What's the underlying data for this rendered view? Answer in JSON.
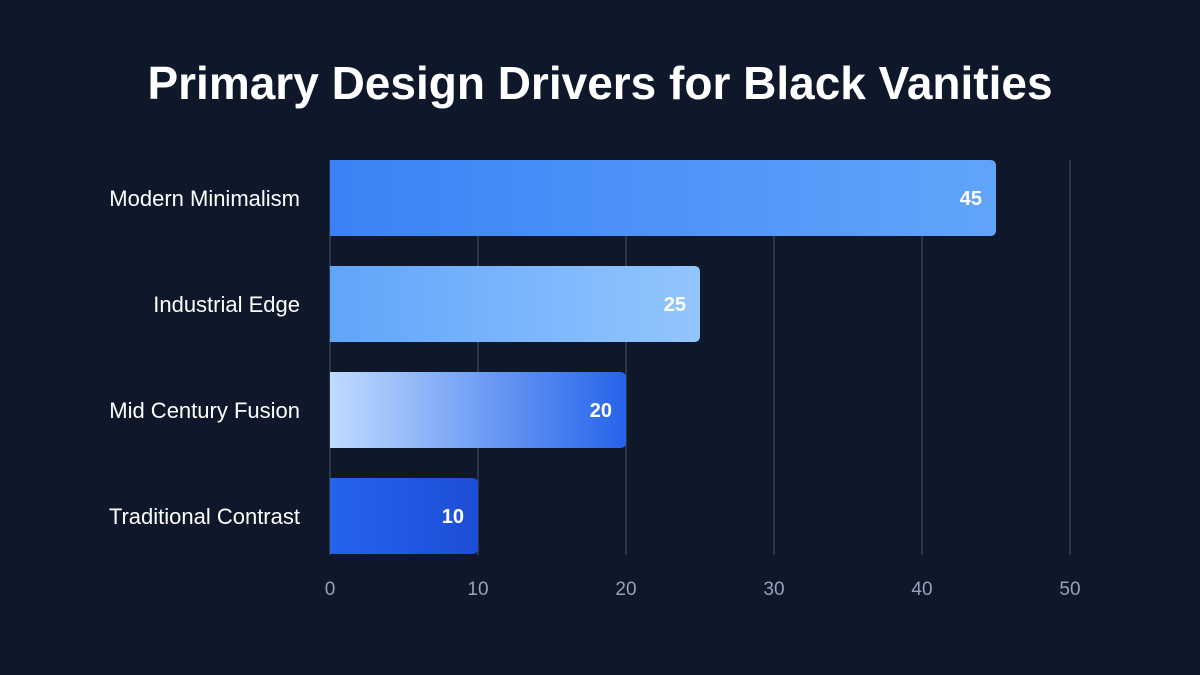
{
  "chart_data": {
    "type": "bar",
    "orientation": "horizontal",
    "title": "Primary Design Drivers for Black Vanities",
    "xlabel": "",
    "ylabel": "",
    "categories": [
      "Modern Minimalism",
      "Industrial Edge",
      "Mid Century Fusion",
      "Traditional Contrast"
    ],
    "values": [
      45,
      25,
      20,
      10
    ],
    "xlim": [
      0,
      50
    ],
    "xticks": [
      0,
      10,
      20,
      30,
      40,
      50
    ],
    "grid": true,
    "colors": {
      "background": "#0f172a",
      "grid": "#334155",
      "text": "#ffffff",
      "tick": "#94a3b8",
      "bar_gradients": [
        [
          "#3b82f6",
          "#60a5fa"
        ],
        [
          "#60a5fa",
          "#93c5fd"
        ],
        [
          "#bfdbfe",
          "#2563eb"
        ],
        [
          "#2563eb",
          "#1d4ed8"
        ]
      ]
    }
  }
}
